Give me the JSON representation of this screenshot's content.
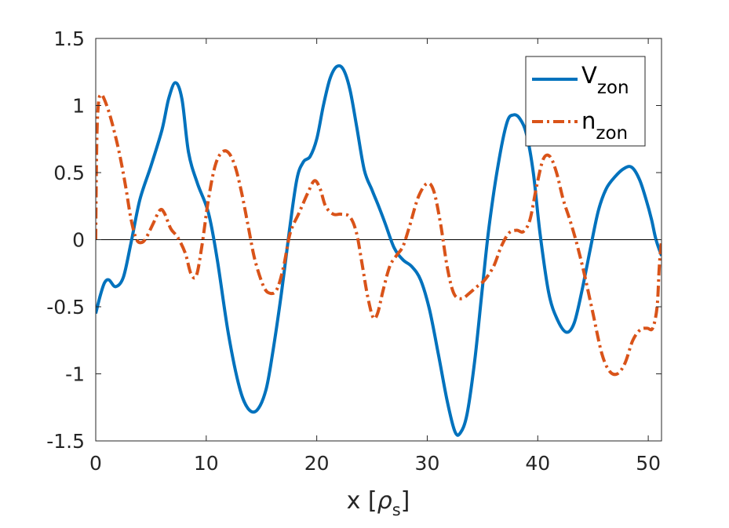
{
  "chart_data": {
    "type": "line",
    "title": "",
    "xlabel": {
      "text": "x [",
      "symbol": "ρ",
      "subscript": "s",
      "close": "]"
    },
    "ylabel": "",
    "xlim": [
      0,
      51.2
    ],
    "ylim": [
      -1.5,
      1.5
    ],
    "xticks": [
      0,
      10,
      20,
      30,
      40,
      50
    ],
    "xtick_labels": [
      "0",
      "10",
      "20",
      "30",
      "40",
      "50"
    ],
    "yticks": [
      -1.5,
      -1,
      -0.5,
      0,
      0.5,
      1,
      1.5
    ],
    "ytick_labels": [
      "-1.5",
      "-1",
      "-0.5",
      "0",
      "0.5",
      "1",
      "1.5"
    ],
    "grid": false,
    "zero_line": true,
    "legend_position": "top-right",
    "series": [
      {
        "name": "V",
        "name_subscript": "zon",
        "color": "#0072BD",
        "style": "solid",
        "x": [
          0,
          0.4,
          0.8,
          1.2,
          1.8,
          2.5,
          3.2,
          4,
          5,
          6,
          6.6,
          7.2,
          7.8,
          8.4,
          9.2,
          10.2,
          11,
          12,
          13,
          13.8,
          14.6,
          15.4,
          16,
          16.8,
          17.5,
          18.2,
          18.8,
          19.4,
          20,
          20.6,
          21.2,
          21.8,
          22.4,
          23,
          23.6,
          24.3,
          25,
          25.6,
          26.2,
          27,
          27.8,
          28.6,
          29.4,
          30.2,
          31,
          31.8,
          32.5,
          33,
          33.6,
          34.3,
          35,
          35.6,
          36.4,
          37.2,
          37.8,
          38.4,
          39,
          39.6,
          40.2,
          41,
          41.8,
          42.6,
          43.3,
          44,
          44.8,
          45.5,
          46.2,
          47,
          47.8,
          48.5,
          49.2,
          49.8,
          50.3,
          50.7,
          51.2
        ],
        "y": [
          -0.55,
          -0.42,
          -0.32,
          -0.3,
          -0.35,
          -0.28,
          -0.02,
          0.3,
          0.55,
          0.82,
          1.05,
          1.17,
          1.05,
          0.65,
          0.42,
          0.2,
          -0.15,
          -0.7,
          -1.1,
          -1.26,
          -1.27,
          -1.12,
          -0.85,
          -0.4,
          0.05,
          0.45,
          0.58,
          0.62,
          0.75,
          1.0,
          1.2,
          1.29,
          1.27,
          1.12,
          0.85,
          0.52,
          0.37,
          0.25,
          0.12,
          -0.06,
          -0.15,
          -0.2,
          -0.3,
          -0.52,
          -0.85,
          -1.2,
          -1.43,
          -1.44,
          -1.3,
          -0.9,
          -0.35,
          0.1,
          0.55,
          0.87,
          0.93,
          0.9,
          0.78,
          0.5,
          0.05,
          -0.4,
          -0.6,
          -0.69,
          -0.62,
          -0.38,
          -0.05,
          0.22,
          0.38,
          0.47,
          0.53,
          0.54,
          0.45,
          0.3,
          0.15,
          0.0,
          -0.12
        ]
      },
      {
        "name": "n",
        "name_subscript": "zon",
        "color": "#D95319",
        "style": "dashdot",
        "x": [
          0,
          0.1,
          0.25,
          0.45,
          0.7,
          1.2,
          1.7,
          2.2,
          2.7,
          3.2,
          3.7,
          4.2,
          4.6,
          5.2,
          5.8,
          6.2,
          6.8,
          7.4,
          8.1,
          8.6,
          9.1,
          9.6,
          10.2,
          10.8,
          11.4,
          12,
          12.6,
          13.2,
          13.8,
          14.4,
          15.2,
          15.8,
          16.4,
          17,
          17.6,
          18.4,
          19.2,
          19.8,
          20.3,
          20.8,
          21.5,
          22.2,
          23,
          23.6,
          24.1,
          24.6,
          25.1,
          25.5,
          26,
          26.6,
          27.2,
          27.8,
          28.4,
          29.2,
          30,
          30.6,
          31.2,
          31.8,
          32.4,
          33.1,
          33.8,
          34.5,
          35.2,
          36,
          36.7,
          37.4,
          38.1,
          38.7,
          39.3,
          39.9,
          40.5,
          41.1,
          41.7,
          42.3,
          42.9,
          43.5,
          44.2,
          45,
          45.8,
          46.5,
          47.2,
          47.9,
          48.6,
          49.3,
          49.9,
          50.4,
          50.8,
          51.0,
          51.2
        ],
        "y": [
          0,
          0.75,
          1.02,
          1.08,
          1.06,
          0.95,
          0.8,
          0.62,
          0.4,
          0.15,
          0.0,
          -0.02,
          0.02,
          0.12,
          0.22,
          0.2,
          0.08,
          0.02,
          -0.1,
          -0.25,
          -0.27,
          -0.05,
          0.3,
          0.55,
          0.65,
          0.65,
          0.55,
          0.35,
          0.1,
          -0.15,
          -0.35,
          -0.4,
          -0.37,
          -0.2,
          0.05,
          0.2,
          0.35,
          0.44,
          0.38,
          0.25,
          0.19,
          0.19,
          0.17,
          0.05,
          -0.18,
          -0.42,
          -0.58,
          -0.55,
          -0.38,
          -0.2,
          -0.12,
          -0.05,
          0.1,
          0.32,
          0.42,
          0.36,
          0.12,
          -0.2,
          -0.4,
          -0.44,
          -0.4,
          -0.35,
          -0.3,
          -0.2,
          -0.05,
          0.05,
          0.07,
          0.06,
          0.15,
          0.4,
          0.6,
          0.62,
          0.5,
          0.3,
          0.15,
          -0.02,
          -0.25,
          -0.55,
          -0.85,
          -0.98,
          -1.0,
          -0.92,
          -0.75,
          -0.67,
          -0.66,
          -0.66,
          -0.5,
          -0.2,
          0.0
        ]
      }
    ]
  }
}
